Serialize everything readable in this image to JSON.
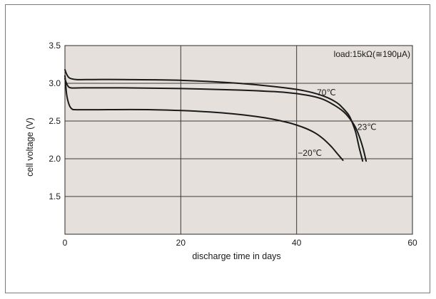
{
  "chart_data": {
    "type": "line",
    "title": "",
    "xlabel": "discharge time in days",
    "ylabel": "cell voltage (V)",
    "xlim": [
      0,
      60
    ],
    "ylim": [
      1.0,
      3.5
    ],
    "xticks": [
      0,
      20,
      40,
      60
    ],
    "yticks": [
      1.5,
      2.0,
      2.5,
      3.0,
      3.5
    ],
    "xtick_labels": [
      "0",
      "20",
      "40",
      "60"
    ],
    "ytick_labels": [
      "1.5",
      "2.0",
      "2.5",
      "3.0",
      "3.5"
    ],
    "grid": true,
    "annotation": "load:15kΩ(≅190μA)",
    "series": [
      {
        "name": "70℃",
        "x": [
          0,
          0.3,
          0.8,
          2,
          5,
          10,
          20,
          30,
          38,
          42,
          45,
          47,
          48,
          49,
          49.5,
          50.2,
          50.8,
          51.4
        ],
        "y": [
          3.18,
          3.12,
          3.07,
          3.05,
          3.05,
          3.05,
          3.04,
          3.0,
          2.94,
          2.89,
          2.82,
          2.74,
          2.67,
          2.58,
          2.5,
          2.35,
          2.15,
          1.97
        ]
      },
      {
        "name": "23℃",
        "x": [
          0,
          0.4,
          1,
          3,
          10,
          20,
          30,
          38,
          42,
          44.5,
          46.5,
          48,
          49,
          50,
          50.8,
          51.5,
          52
        ],
        "y": [
          3.06,
          2.98,
          2.94,
          2.94,
          2.94,
          2.93,
          2.91,
          2.88,
          2.84,
          2.79,
          2.71,
          2.63,
          2.55,
          2.44,
          2.3,
          2.13,
          1.97
        ]
      },
      {
        "name": "−20℃",
        "x": [
          0,
          0.3,
          0.7,
          1.2,
          2,
          5,
          15,
          25,
          33,
          38,
          41,
          43,
          44.5,
          46,
          47,
          48
        ],
        "y": [
          3.1,
          2.85,
          2.72,
          2.66,
          2.65,
          2.65,
          2.65,
          2.62,
          2.56,
          2.49,
          2.42,
          2.35,
          2.27,
          2.16,
          2.07,
          1.98
        ]
      }
    ],
    "series_label_positions": [
      {
        "name": "70℃",
        "x": 43.5,
        "y": 2.84
      },
      {
        "name": "23℃",
        "x": 50.5,
        "y": 2.38
      },
      {
        "name": "−20℃",
        "x": 40.2,
        "y": 2.04
      }
    ],
    "colors": {
      "plot_bg": "#e5e0dc",
      "line": "#1a1a1a",
      "grid": "#3a3a3a"
    }
  }
}
